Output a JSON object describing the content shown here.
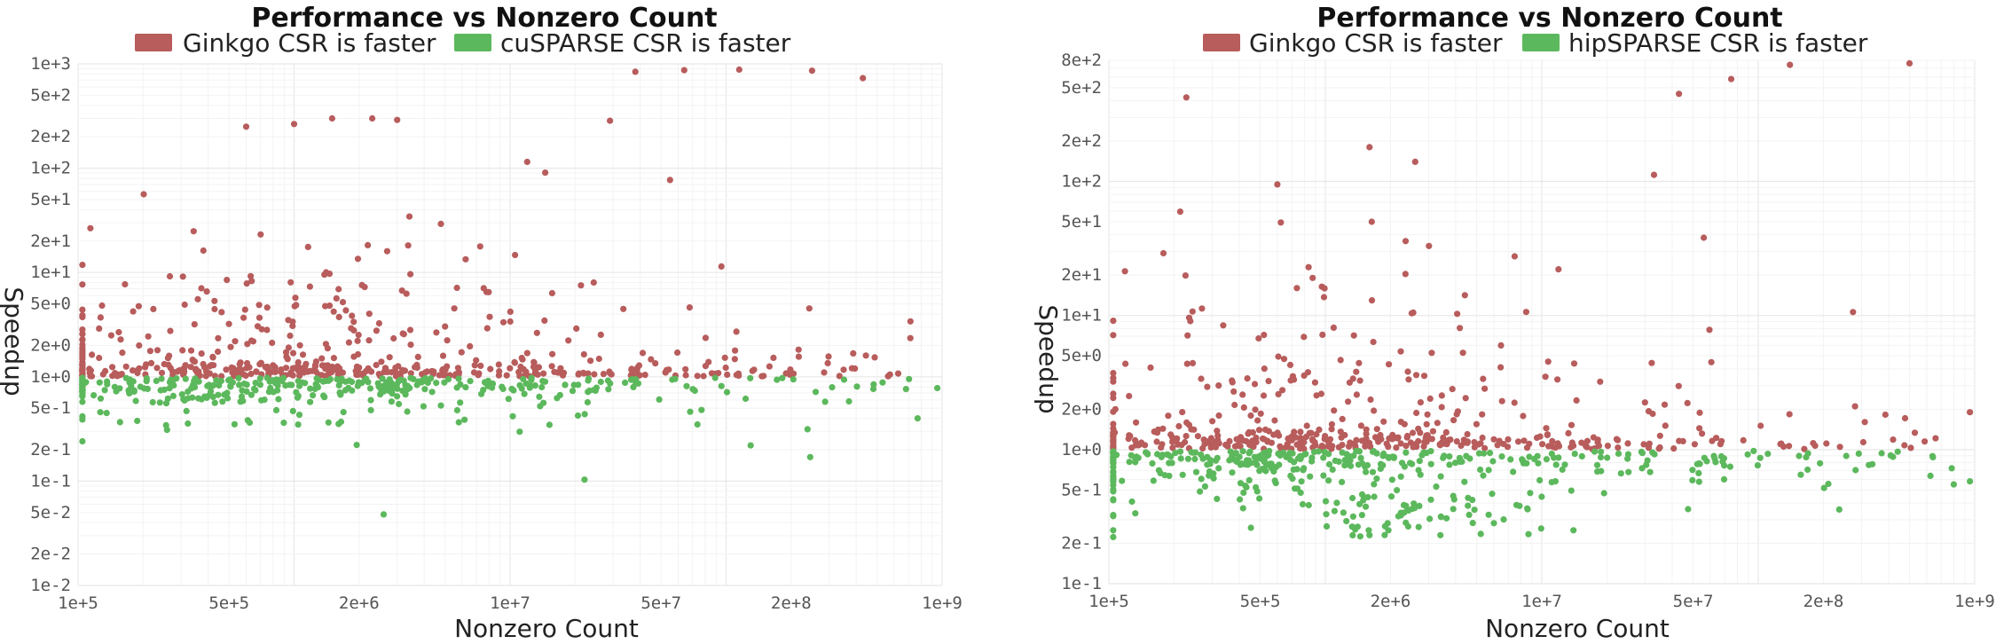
{
  "chart_data": [
    {
      "type": "scatter",
      "title": "Performance vs Nonzero Count",
      "xlabel": "Nonzero Count",
      "ylabel": "Speedup",
      "xscale": "log",
      "yscale": "log",
      "xlim": [
        100000,
        1000000000
      ],
      "ylim": [
        0.01,
        1000
      ],
      "x_ticks": [
        "1e+5",
        "5e+5",
        "2e+6",
        "1e+7",
        "5e+7",
        "2e+8",
        "1e+9"
      ],
      "y_ticks": [
        "1e+3",
        "5e+2",
        "2e+2",
        "1e+2",
        "5e+1",
        "2e+1",
        "1e+1",
        "5e+0",
        "2e+0",
        "1e+0",
        "5e-1",
        "2e-1",
        "1e-1",
        "5e-2",
        "2e-2",
        "1e-2"
      ],
      "grid": true,
      "legend_position": "top-center",
      "series": [
        {
          "name": "Ginkgo CSR is faster",
          "color": "#b85c5c",
          "seed": 17,
          "count": 520,
          "points": [
            [
              38000000.0,
              840
            ],
            [
              64000000.0,
              870
            ],
            [
              115000000.0,
              880
            ],
            [
              250000000.0,
              860
            ],
            [
              430000000.0,
              730
            ],
            [
              29000000.0,
              285
            ],
            [
              12000000.0,
              115
            ],
            [
              55000000.0,
              77
            ],
            [
              600000.0,
              250
            ],
            [
              1000000.0,
              265
            ],
            [
              1500000.0,
              300
            ],
            [
              2300000.0,
              300
            ],
            [
              3000000.0,
              290
            ]
          ]
        },
        {
          "name": "cuSPARSE CSR is faster",
          "color": "#5cb85c",
          "seed": 29,
          "count": 380,
          "points": [
            [
              2600000.0,
              0.048
            ],
            [
              245000000.0,
              0.17
            ],
            [
              770000000.0,
              0.4
            ],
            [
              950000000.0,
              0.78
            ],
            [
              130000000.0,
              0.22
            ]
          ]
        }
      ]
    },
    {
      "type": "scatter",
      "title": "Performance vs Nonzero Count",
      "xlabel": "Nonzero Count",
      "ylabel": "Speedup",
      "xscale": "log",
      "yscale": "log",
      "xlim": [
        100000,
        1000000000
      ],
      "ylim": [
        0.1,
        800
      ],
      "x_ticks": [
        "1e+5",
        "5e+5",
        "2e+6",
        "1e+7",
        "5e+7",
        "2e+8",
        "1e+9"
      ],
      "y_ticks": [
        "8e+2",
        "5e+2",
        "2e+2",
        "1e+2",
        "5e+1",
        "2e+1",
        "1e+1",
        "5e+0",
        "2e+0",
        "1e+0",
        "5e-1",
        "2e-1",
        "1e-1"
      ],
      "grid": true,
      "legend_position": "top-center",
      "series": [
        {
          "name": "Ginkgo CSR is faster",
          "color": "#b85c5c",
          "seed": 41,
          "count": 470,
          "points": [
            [
              43000000.0,
              450
            ],
            [
              75000000.0,
              580
            ],
            [
              140000000.0,
              740
            ],
            [
              500000000.0,
              760
            ],
            [
              33000000.0,
              112
            ],
            [
              56000000.0,
              38
            ],
            [
              950000000.0,
              1.9
            ],
            [
              280000000.0,
              2.1
            ],
            [
              1600000.0,
              180
            ],
            [
              2600000.0,
              140
            ],
            [
              600000.0,
              95
            ]
          ]
        },
        {
          "name": "hipSPARSE CSR is faster",
          "color": "#5cb85c",
          "seed": 53,
          "count": 430,
          "points": [
            [
              14000000.0,
              0.25
            ],
            [
              3400000.0,
              0.23
            ],
            [
              1600000.0,
              0.23
            ],
            [
              800000000.0,
              0.55
            ],
            [
              950000000.0,
              0.58
            ]
          ]
        }
      ]
    }
  ]
}
